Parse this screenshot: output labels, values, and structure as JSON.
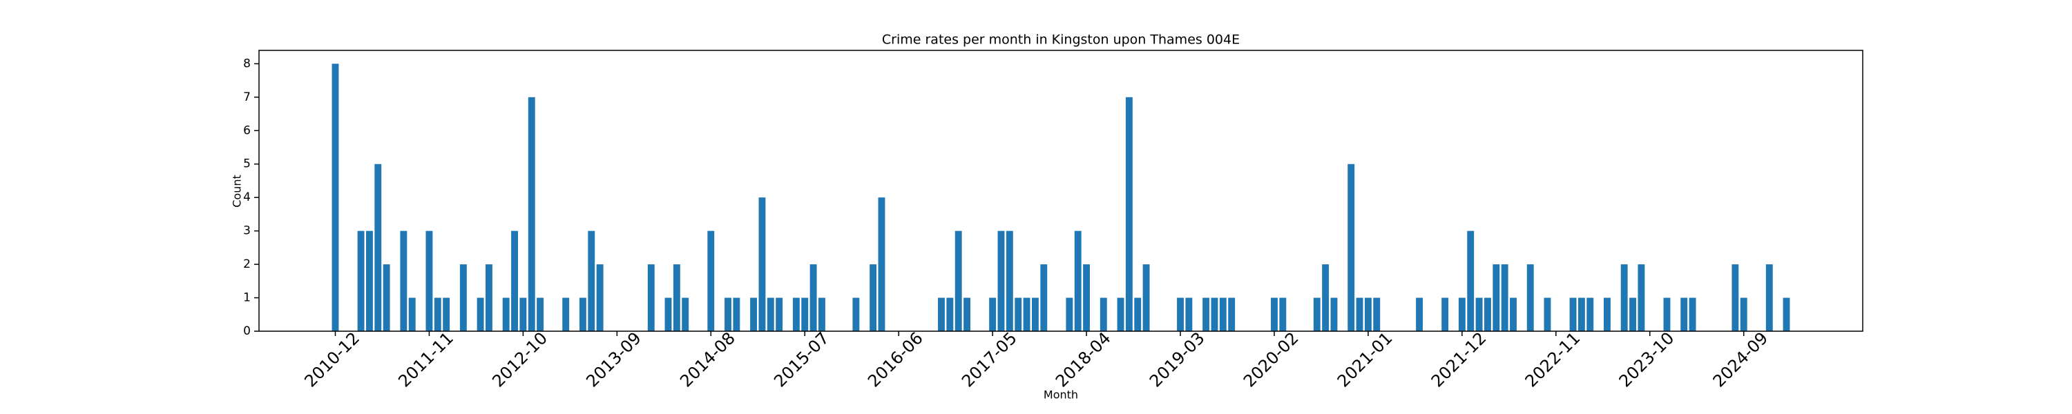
{
  "chart_data": {
    "type": "bar",
    "title": "Crime rates per month in Kingston upon Thames 004E",
    "xlabel": "Month",
    "ylabel": "Count",
    "color": "#1f77b4",
    "categories": [
      "2010-12",
      null,
      null,
      null,
      null,
      null,
      null,
      null,
      null,
      null,
      null,
      "2011-11",
      null,
      null,
      null,
      null,
      null,
      null,
      null,
      null,
      null,
      null,
      "2012-10",
      null,
      null,
      null,
      null,
      null,
      null,
      null,
      null,
      null,
      null,
      "2013-09",
      null,
      null,
      null,
      null,
      null,
      null,
      null,
      null,
      null,
      null,
      "2014-08",
      null,
      null,
      null,
      null,
      null,
      null,
      null,
      null,
      null,
      null,
      "2015-07",
      null,
      null,
      null,
      null,
      null,
      null,
      null,
      null,
      null,
      null,
      "2016-06",
      null,
      null,
      null,
      null,
      null,
      null,
      null,
      null,
      null,
      null,
      "2017-05",
      null,
      null,
      null,
      null,
      null,
      null,
      null,
      null,
      null,
      null,
      "2018-04",
      null,
      null,
      null,
      null,
      null,
      null,
      null,
      null,
      null,
      null,
      "2019-03",
      null,
      null,
      null,
      null,
      null,
      null,
      null,
      null,
      null,
      null,
      "2020-02",
      null,
      null,
      null,
      null,
      null,
      null,
      null,
      null,
      null,
      null,
      "2021-01",
      null,
      null,
      null,
      null,
      null,
      null,
      null,
      null,
      null,
      null,
      "2021-12",
      null,
      null,
      null,
      null,
      null,
      null,
      null,
      null,
      null,
      null,
      "2022-11",
      null,
      null,
      null,
      null,
      null,
      null,
      null,
      null,
      null,
      null,
      "2023-10",
      null,
      null,
      null,
      null,
      null,
      null,
      null,
      null,
      null,
      null,
      "2024-09",
      null,
      null,
      null,
      null,
      null
    ],
    "values": [
      8,
      0,
      0,
      3,
      3,
      5,
      2,
      0,
      3,
      1,
      0,
      3,
      1,
      1,
      0,
      2,
      0,
      1,
      2,
      0,
      1,
      3,
      1,
      7,
      1,
      0,
      0,
      1,
      0,
      1,
      3,
      2,
      0,
      0,
      0,
      0,
      0,
      2,
      0,
      1,
      2,
      1,
      0,
      0,
      3,
      0,
      1,
      1,
      0,
      1,
      4,
      1,
      1,
      0,
      1,
      1,
      2,
      1,
      0,
      0,
      0,
      1,
      0,
      2,
      4,
      0,
      0,
      0,
      0,
      0,
      0,
      1,
      1,
      3,
      1,
      0,
      0,
      1,
      3,
      3,
      1,
      1,
      1,
      2,
      0,
      0,
      1,
      3,
      2,
      0,
      1,
      0,
      1,
      7,
      1,
      2,
      0,
      0,
      0,
      1,
      1,
      0,
      1,
      1,
      1,
      1,
      0,
      0,
      0,
      0,
      1,
      1,
      0,
      0,
      0,
      1,
      2,
      1,
      0,
      5,
      1,
      1,
      1,
      0,
      0,
      0,
      0,
      1,
      0,
      0,
      1,
      0,
      1,
      3,
      1,
      1,
      2,
      2,
      1,
      0,
      2,
      0,
      1,
      0,
      0,
      1,
      1,
      1,
      0,
      1,
      0,
      2,
      1,
      2,
      0,
      0,
      1,
      0,
      1,
      1,
      0,
      0,
      0,
      0,
      2,
      1,
      0,
      0,
      2,
      0,
      1
    ],
    "ylim": [
      0,
      8.4
    ],
    "yticks": [
      0,
      1,
      2,
      3,
      4,
      5,
      6,
      7,
      8
    ]
  }
}
